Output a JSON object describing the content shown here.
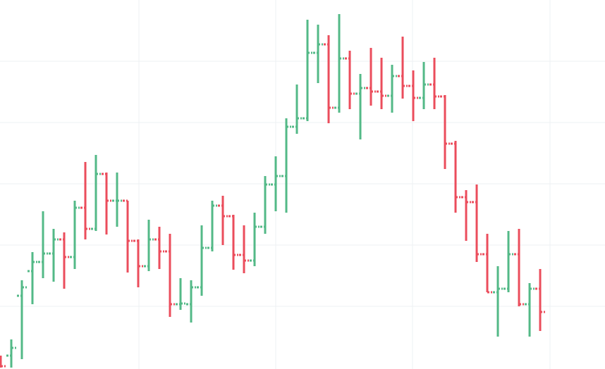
{
  "chart_data": {
    "type": "ohlc",
    "x": [
      0,
      1,
      2,
      3,
      4,
      5,
      6,
      7,
      8,
      9,
      10,
      11,
      12,
      13,
      14,
      15,
      16,
      17,
      18,
      19,
      20,
      21,
      22,
      23,
      24,
      25,
      26,
      27,
      28,
      29,
      30,
      31,
      32,
      33,
      34,
      35,
      36,
      37,
      38,
      39,
      40,
      41,
      42,
      43,
      44,
      45,
      46,
      47,
      48,
      49,
      50,
      51
    ],
    "open": [
      12,
      17,
      102,
      137,
      150,
      162,
      182,
      157,
      227,
      197,
      275,
      237,
      237,
      180,
      144,
      182,
      165,
      90,
      90,
      114,
      170,
      230,
      215,
      160,
      152,
      200,
      260,
      272,
      342,
      354,
      447,
      459,
      369,
      439,
      389,
      397,
      392,
      386,
      414,
      400,
      383,
      402,
      385,
      318,
      242,
      235,
      161,
      107,
      112,
      161,
      90,
      112
    ],
    "high": [
      17,
      40,
      124,
      164,
      222,
      197,
      192,
      237,
      292,
      302,
      277,
      277,
      237,
      182,
      210,
      200,
      190,
      127,
      124,
      202,
      237,
      244,
      217,
      202,
      220,
      272,
      300,
      354,
      402,
      494,
      487,
      472,
      502,
      450,
      417,
      454,
      440,
      430,
      470,
      422,
      434,
      440,
      387,
      322,
      252,
      260,
      190,
      144,
      194,
      197,
      120,
      140
    ],
    "low": [
      0,
      0,
      12,
      90,
      127,
      122,
      112,
      140,
      182,
      194,
      189,
      200,
      135,
      114,
      137,
      140,
      72,
      82,
      64,
      102,
      165,
      174,
      139,
      134,
      144,
      190,
      222,
      220,
      332,
      350,
      404,
      347,
      362,
      367,
      324,
      372,
      367,
      362,
      382,
      350,
      367,
      367,
      282,
      220,
      180,
      150,
      107,
      44,
      107,
      87,
      44,
      52
    ],
    "close": [
      2,
      28,
      114,
      150,
      162,
      182,
      157,
      227,
      197,
      275,
      237,
      237,
      180,
      144,
      182,
      165,
      90,
      91,
      114,
      170,
      230,
      215,
      160,
      152,
      200,
      260,
      272,
      342,
      354,
      447,
      459,
      369,
      439,
      389,
      397,
      392,
      386,
      414,
      400,
      383,
      402,
      385,
      318,
      242,
      235,
      161,
      107,
      112,
      161,
      90,
      112,
      79
    ],
    "up_color": "#53b987",
    "down_color": "#eb4d5c",
    "xlim": [
      -0.0667,
      57.13
    ],
    "xticks": [
      13.07,
      26,
      38.93,
      51.93
    ],
    "ylim": [
      0,
      522
    ],
    "yticks": [
      87,
      174,
      261,
      348,
      435
    ],
    "grid": true
  }
}
